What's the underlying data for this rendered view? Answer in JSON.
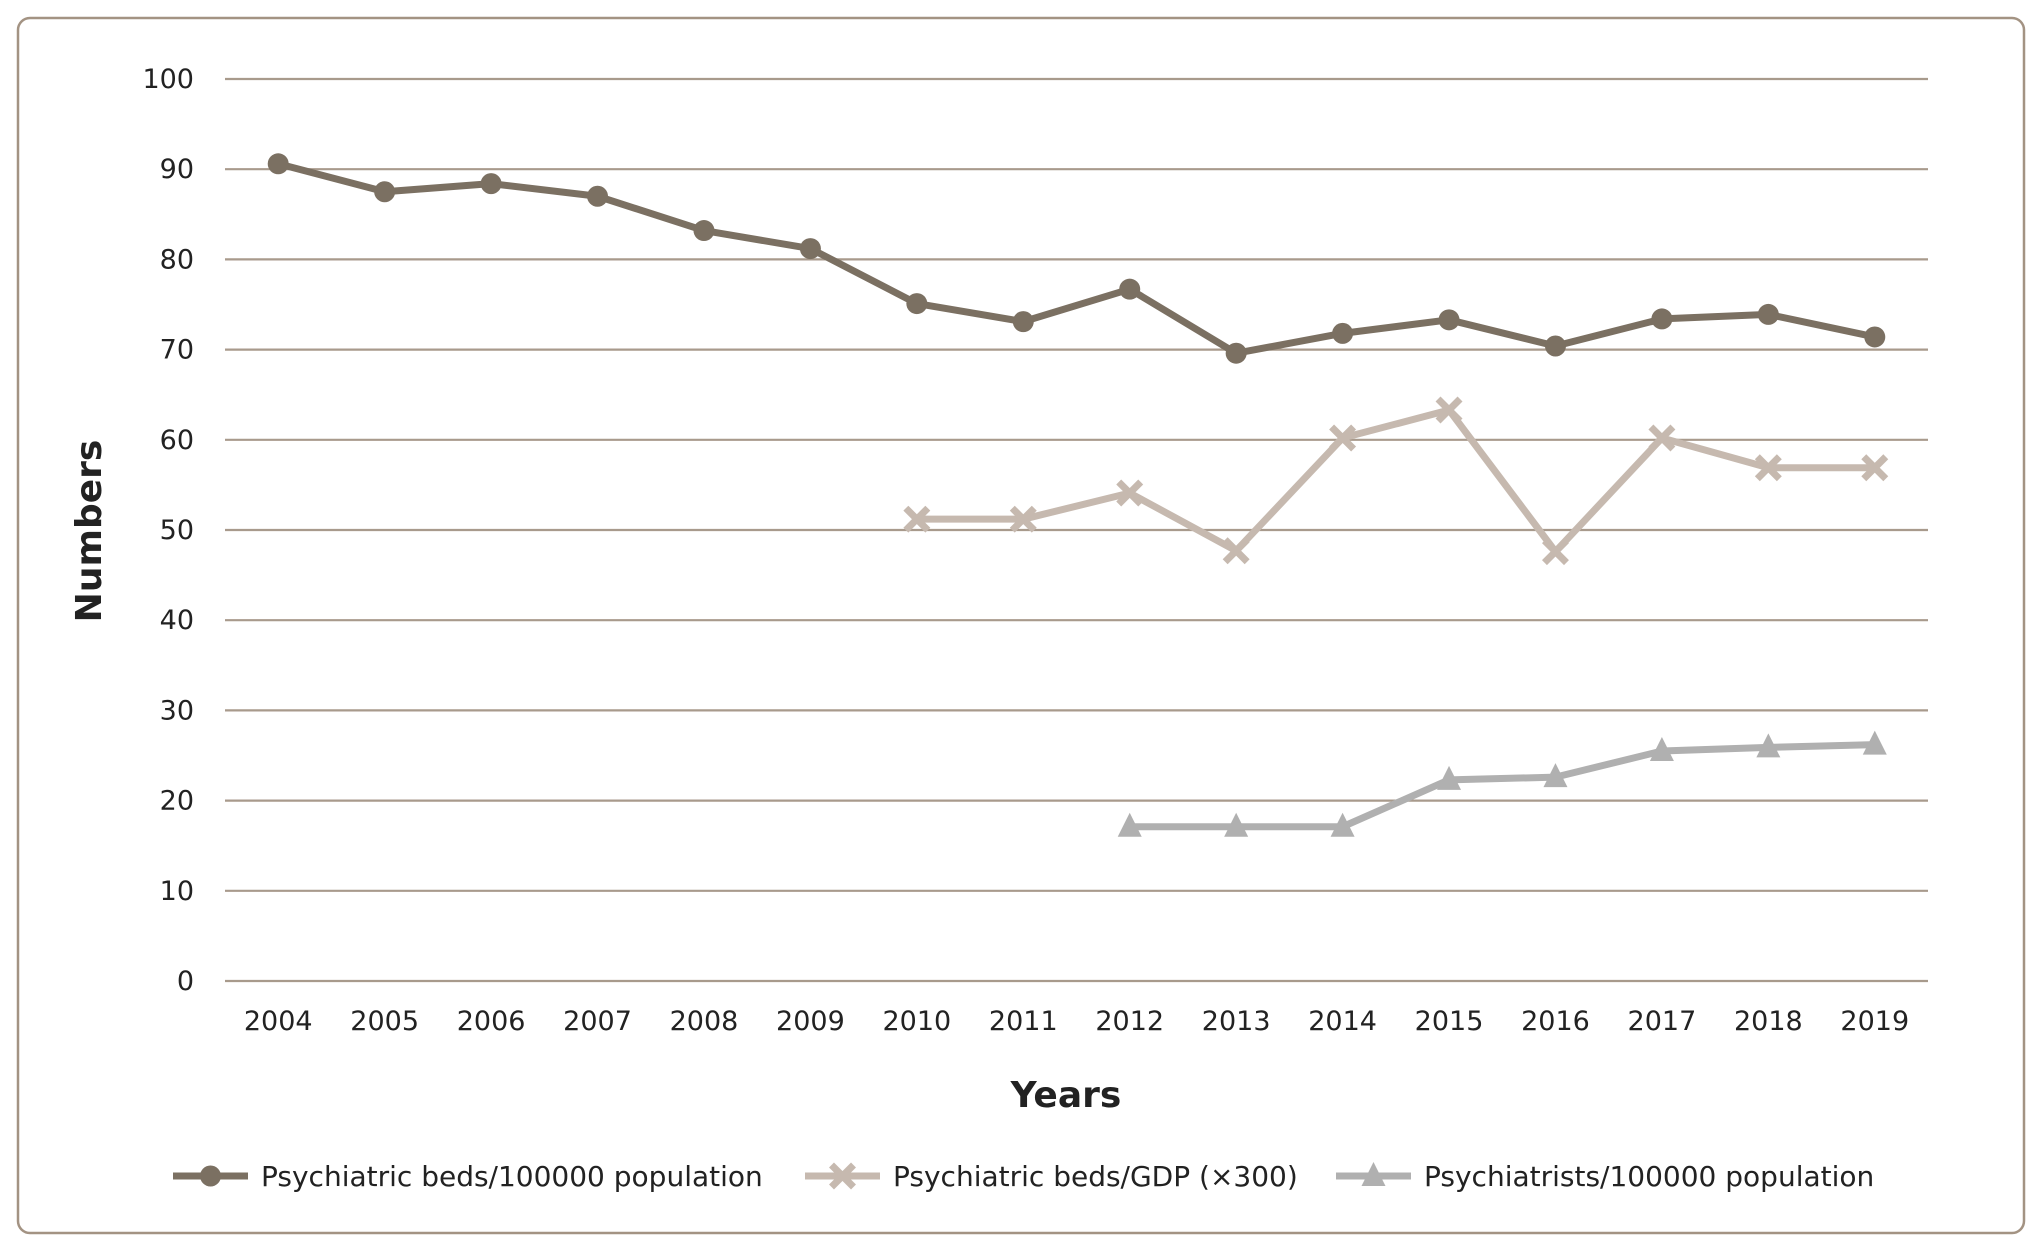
{
  "chart_data": {
    "type": "line",
    "title": "",
    "xlabel": "Years",
    "ylabel": "Numbers",
    "ylim": [
      0,
      100
    ],
    "yticks": [
      0,
      10,
      20,
      30,
      40,
      50,
      60,
      70,
      80,
      90,
      100
    ],
    "grid": true,
    "legend_position": "bottom",
    "categories": [
      "2004",
      "2005",
      "2006",
      "2007",
      "2008",
      "2009",
      "2010",
      "2011",
      "2012",
      "2013",
      "2014",
      "2015",
      "2016",
      "2017",
      "2018",
      "2019"
    ],
    "series": [
      {
        "name": "Psychiatric beds/100000 population",
        "marker": "circle",
        "color": "#7b7062",
        "values": [
          90.6,
          87.5,
          88.4,
          87.0,
          83.2,
          81.2,
          75.1,
          73.1,
          76.7,
          69.6,
          71.8,
          73.3,
          70.4,
          73.4,
          73.9,
          71.4
        ]
      },
      {
        "name": "Psychiatric beds/GDP (×300)",
        "marker": "x",
        "color": "#c6b9af",
        "values": [
          null,
          null,
          null,
          null,
          null,
          null,
          51.2,
          51.2,
          54.1,
          47.7,
          60.2,
          63.3,
          47.6,
          60.2,
          56.9,
          56.9
        ]
      },
      {
        "name": "Psychiatrists/100000 population",
        "marker": "triangle",
        "color": "#b0b0b0",
        "values": [
          null,
          null,
          null,
          null,
          null,
          null,
          null,
          null,
          17.1,
          17.1,
          17.1,
          22.3,
          22.6,
          25.5,
          25.9,
          26.2
        ]
      }
    ],
    "colors": {
      "gridline": "#a89a8c",
      "frame": "#a39383",
      "text": "#222222"
    }
  }
}
